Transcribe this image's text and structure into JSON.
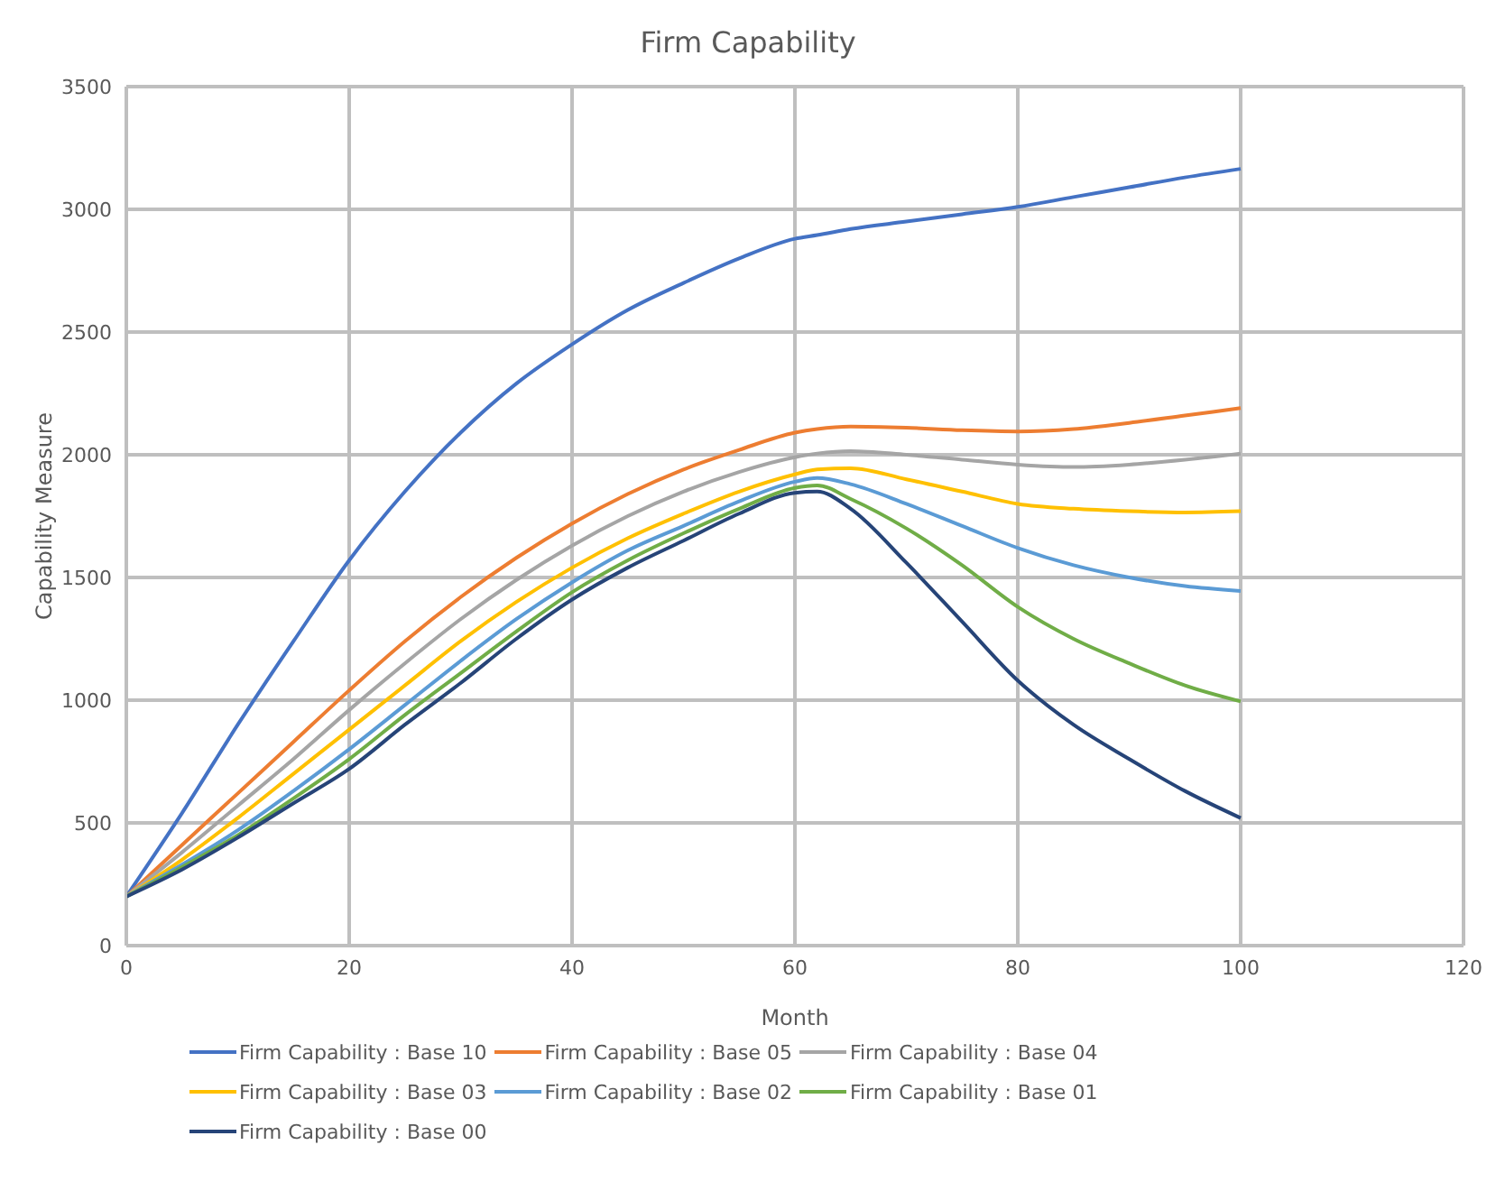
{
  "chart_data": {
    "type": "line",
    "title": "Firm Capability",
    "xlabel": "Month",
    "ylabel": "Capability Measure",
    "x": [
      0,
      5,
      10,
      15,
      20,
      25,
      30,
      35,
      40,
      45,
      50,
      55,
      60,
      62,
      65,
      70,
      75,
      80,
      85,
      90,
      95,
      100
    ],
    "series": [
      {
        "name": "Firm Capability : Base 10",
        "color": "#4472c4",
        "values": [
          200,
          540,
          900,
          1240,
          1570,
          1850,
          2090,
          2290,
          2450,
          2590,
          2700,
          2800,
          2880,
          2895,
          2920,
          2950,
          2980,
          3010,
          3050,
          3090,
          3130,
          3165
        ]
      },
      {
        "name": "Firm Capability : Base 05",
        "color": "#ed7d31",
        "values": [
          200,
          410,
          620,
          830,
          1040,
          1240,
          1420,
          1580,
          1720,
          1840,
          1940,
          2020,
          2090,
          2105,
          2115,
          2110,
          2100,
          2095,
          2105,
          2130,
          2160,
          2190
        ]
      },
      {
        "name": "Firm Capability : Base 04",
        "color": "#a5a5a5",
        "values": [
          200,
          380,
          570,
          760,
          960,
          1150,
          1330,
          1490,
          1630,
          1750,
          1850,
          1930,
          1990,
          2005,
          2015,
          2000,
          1980,
          1960,
          1950,
          1960,
          1980,
          2005
        ]
      },
      {
        "name": "Firm Capability : Base 03",
        "color": "#ffc000",
        "values": [
          200,
          350,
          520,
          700,
          880,
          1060,
          1240,
          1400,
          1540,
          1660,
          1760,
          1850,
          1920,
          1940,
          1945,
          1900,
          1850,
          1800,
          1780,
          1770,
          1765,
          1770
        ]
      },
      {
        "name": "Firm Capability : Base 02",
        "color": "#5b9bd5",
        "values": [
          200,
          330,
          470,
          630,
          800,
          980,
          1160,
          1330,
          1480,
          1610,
          1710,
          1810,
          1890,
          1905,
          1880,
          1800,
          1710,
          1620,
          1550,
          1500,
          1465,
          1445
        ]
      },
      {
        "name": "Firm Capability : Base 01",
        "color": "#70ad47",
        "values": [
          200,
          320,
          450,
          600,
          760,
          940,
          1110,
          1280,
          1440,
          1570,
          1680,
          1780,
          1865,
          1875,
          1820,
          1700,
          1550,
          1380,
          1250,
          1150,
          1060,
          995
        ]
      },
      {
        "name": "Firm Capability : Base 00",
        "color": "#264478",
        "values": [
          200,
          310,
          440,
          580,
          720,
          900,
          1070,
          1250,
          1410,
          1540,
          1650,
          1760,
          1845,
          1850,
          1780,
          1560,
          1320,
          1080,
          900,
          760,
          630,
          520
        ]
      }
    ],
    "xlim": [
      0,
      120
    ],
    "xticks": [
      0,
      20,
      40,
      60,
      80,
      100,
      120
    ],
    "ylim": [
      0,
      3500
    ],
    "yticks": [
      0,
      500,
      1000,
      1500,
      2000,
      2500,
      3000,
      3500
    ],
    "grid": true,
    "legend": "bottom",
    "marker": "none",
    "line_style": "solid"
  }
}
